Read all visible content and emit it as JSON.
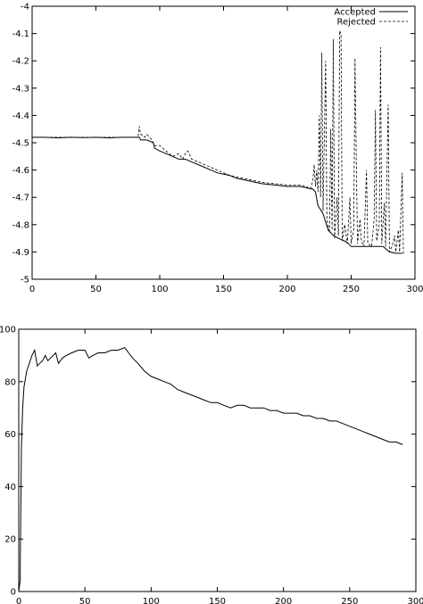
{
  "chart_data": [
    {
      "type": "line",
      "title": "",
      "xlabel": "",
      "ylabel": "",
      "xlim": [
        0,
        300
      ],
      "ylim": [
        -5,
        -4
      ],
      "x_ticks": [
        "0",
        "50",
        "100",
        "150",
        "200",
        "250",
        "300"
      ],
      "y_ticks": [
        "-5",
        "-4.9",
        "-4.8",
        "-4.7",
        "-4.6",
        "-4.5",
        "-4.4",
        "-4.3",
        "-4.2",
        "-4.1",
        "-4"
      ],
      "grid": false,
      "legend": "top-right",
      "series": [
        {
          "name": "Accepted",
          "style": "solid",
          "points": [
            [
              0,
              -4.48
            ],
            [
              10,
              -4.48
            ],
            [
              20,
              -4.482
            ],
            [
              30,
              -4.48
            ],
            [
              40,
              -4.481
            ],
            [
              50,
              -4.48
            ],
            [
              60,
              -4.482
            ],
            [
              70,
              -4.48
            ],
            [
              80,
              -4.48
            ],
            [
              84,
              -4.48
            ],
            [
              85,
              -4.49
            ],
            [
              90,
              -4.49
            ],
            [
              95,
              -4.5
            ],
            [
              96,
              -4.52
            ],
            [
              100,
              -4.53
            ],
            [
              105,
              -4.54
            ],
            [
              110,
              -4.55
            ],
            [
              115,
              -4.56
            ],
            [
              120,
              -4.56
            ],
            [
              125,
              -4.57
            ],
            [
              130,
              -4.58
            ],
            [
              135,
              -4.59
            ],
            [
              140,
              -4.6
            ],
            [
              145,
              -4.61
            ],
            [
              150,
              -4.615
            ],
            [
              155,
              -4.62
            ],
            [
              160,
              -4.63
            ],
            [
              165,
              -4.635
            ],
            [
              170,
              -4.64
            ],
            [
              175,
              -4.645
            ],
            [
              180,
              -4.65
            ],
            [
              190,
              -4.655
            ],
            [
              200,
              -4.66
            ],
            [
              210,
              -4.66
            ],
            [
              215,
              -4.665
            ],
            [
              220,
              -4.67
            ],
            [
              222,
              -4.68
            ],
            [
              224,
              -4.73
            ],
            [
              228,
              -4.76
            ],
            [
              232,
              -4.82
            ],
            [
              236,
              -4.84
            ],
            [
              240,
              -4.85
            ],
            [
              245,
              -4.86
            ],
            [
              248,
              -4.87
            ],
            [
              250,
              -4.88
            ],
            [
              260,
              -4.88
            ],
            [
              270,
              -4.88
            ],
            [
              275,
              -4.88
            ],
            [
              280,
              -4.9
            ],
            [
              285,
              -4.905
            ],
            [
              290,
              -4.905
            ]
          ]
        },
        {
          "name": "Rejected",
          "style": "dashed",
          "points": [
            [
              0,
              -4.48
            ],
            [
              20,
              -4.48
            ],
            [
              40,
              -4.48
            ],
            [
              60,
              -4.48
            ],
            [
              80,
              -4.48
            ],
            [
              83,
              -4.48
            ],
            [
              84,
              -4.44
            ],
            [
              85,
              -4.47
            ],
            [
              86,
              -4.47
            ],
            [
              88,
              -4.48
            ],
            [
              90,
              -4.47
            ],
            [
              94,
              -4.49
            ],
            [
              96,
              -4.51
            ],
            [
              100,
              -4.51
            ],
            [
              105,
              -4.53
            ],
            [
              110,
              -4.55
            ],
            [
              115,
              -4.54
            ],
            [
              118,
              -4.56
            ],
            [
              120,
              -4.54
            ],
            [
              122,
              -4.53
            ],
            [
              125,
              -4.56
            ],
            [
              130,
              -4.57
            ],
            [
              135,
              -4.58
            ],
            [
              140,
              -4.59
            ],
            [
              145,
              -4.6
            ],
            [
              150,
              -4.61
            ],
            [
              155,
              -4.62
            ],
            [
              160,
              -4.625
            ],
            [
              165,
              -4.63
            ],
            [
              170,
              -4.635
            ],
            [
              175,
              -4.64
            ],
            [
              180,
              -4.645
            ],
            [
              190,
              -4.65
            ],
            [
              200,
              -4.655
            ],
            [
              210,
              -4.655
            ],
            [
              215,
              -4.66
            ],
            [
              218,
              -4.67
            ],
            [
              220,
              -4.64
            ],
            [
              221,
              -4.58
            ],
            [
              222,
              -4.66
            ],
            [
              223,
              -4.6
            ],
            [
              224,
              -4.68
            ],
            [
              225,
              -4.4
            ],
            [
              226,
              -4.7
            ],
            [
              227,
              -4.17
            ],
            [
              228,
              -4.75
            ],
            [
              230,
              -4.2
            ],
            [
              231,
              -4.78
            ],
            [
              233,
              -4.83
            ],
            [
              234,
              -4.45
            ],
            [
              235,
              -4.82
            ],
            [
              236,
              -4.12
            ],
            [
              237,
              -4.85
            ],
            [
              239,
              -4.7
            ],
            [
              240,
              -4.84
            ],
            [
              241,
              -4.09
            ],
            [
              242,
              -4.1
            ],
            [
              243,
              -4.86
            ],
            [
              245,
              -4.8
            ],
            [
              247,
              -4.87
            ],
            [
              249,
              -4.7
            ],
            [
              250,
              -4.87
            ],
            [
              252,
              -4.82
            ],
            [
              253,
              -4.19
            ],
            [
              254,
              -4.55
            ],
            [
              255,
              -4.87
            ],
            [
              257,
              -4.78
            ],
            [
              258,
              -4.86
            ],
            [
              260,
              -4.88
            ],
            [
              262,
              -4.6
            ],
            [
              263,
              -4.87
            ],
            [
              266,
              -4.88
            ],
            [
              268,
              -4.78
            ],
            [
              269,
              -4.38
            ],
            [
              270,
              -4.86
            ],
            [
              272,
              -4.8
            ],
            [
              273,
              -4.15
            ],
            [
              274,
              -4.87
            ],
            [
              276,
              -4.72
            ],
            [
              277,
              -4.88
            ],
            [
              279,
              -4.36
            ],
            [
              280,
              -4.9
            ],
            [
              282,
              -4.88
            ],
            [
              284,
              -4.84
            ],
            [
              285,
              -4.9
            ],
            [
              287,
              -4.82
            ],
            [
              288,
              -4.9
            ],
            [
              290,
              -4.61
            ],
            [
              291,
              -4.91
            ]
          ]
        }
      ]
    },
    {
      "type": "line",
      "title": "",
      "xlabel": "",
      "ylabel": "",
      "xlim": [
        0,
        300
      ],
      "ylim": [
        0,
        100
      ],
      "x_ticks": [
        "0",
        "50",
        "100",
        "150",
        "200",
        "250",
        "300"
      ],
      "y_ticks": [
        "0",
        "20",
        "40",
        "60",
        "80",
        "100"
      ],
      "grid": false,
      "legend": "none",
      "series": [
        {
          "style": "solid",
          "points": [
            [
              0,
              0
            ],
            [
              1,
              4
            ],
            [
              2,
              55
            ],
            [
              3,
              70
            ],
            [
              4,
              78
            ],
            [
              6,
              84
            ],
            [
              8,
              87
            ],
            [
              10,
              90
            ],
            [
              12,
              92
            ],
            [
              14,
              86
            ],
            [
              16,
              87
            ],
            [
              18,
              88
            ],
            [
              20,
              90
            ],
            [
              22,
              88
            ],
            [
              24,
              89
            ],
            [
              26,
              90
            ],
            [
              28,
              91
            ],
            [
              30,
              87
            ],
            [
              33,
              89
            ],
            [
              36,
              90
            ],
            [
              40,
              91
            ],
            [
              45,
              92
            ],
            [
              50,
              92
            ],
            [
              53,
              89
            ],
            [
              56,
              90
            ],
            [
              60,
              91
            ],
            [
              65,
              91
            ],
            [
              70,
              92
            ],
            [
              75,
              92
            ],
            [
              80,
              93
            ],
            [
              83,
              91
            ],
            [
              86,
              89
            ],
            [
              90,
              87
            ],
            [
              95,
              84
            ],
            [
              100,
              82
            ],
            [
              105,
              81
            ],
            [
              110,
              80
            ],
            [
              115,
              79
            ],
            [
              120,
              77
            ],
            [
              125,
              76
            ],
            [
              130,
              75
            ],
            [
              135,
              74
            ],
            [
              140,
              73
            ],
            [
              145,
              72
            ],
            [
              150,
              72
            ],
            [
              155,
              71
            ],
            [
              160,
              70
            ],
            [
              165,
              71
            ],
            [
              170,
              71
            ],
            [
              175,
              70
            ],
            [
              180,
              70
            ],
            [
              185,
              70
            ],
            [
              190,
              69
            ],
            [
              195,
              69
            ],
            [
              200,
              68
            ],
            [
              205,
              68
            ],
            [
              210,
              68
            ],
            [
              215,
              67
            ],
            [
              220,
              67
            ],
            [
              225,
              66
            ],
            [
              230,
              66
            ],
            [
              235,
              65
            ],
            [
              240,
              65
            ],
            [
              245,
              64
            ],
            [
              250,
              63
            ],
            [
              255,
              62
            ],
            [
              260,
              61
            ],
            [
              265,
              60
            ],
            [
              270,
              59
            ],
            [
              275,
              58
            ],
            [
              280,
              57
            ],
            [
              285,
              57
            ],
            [
              290,
              56
            ]
          ]
        }
      ]
    }
  ]
}
